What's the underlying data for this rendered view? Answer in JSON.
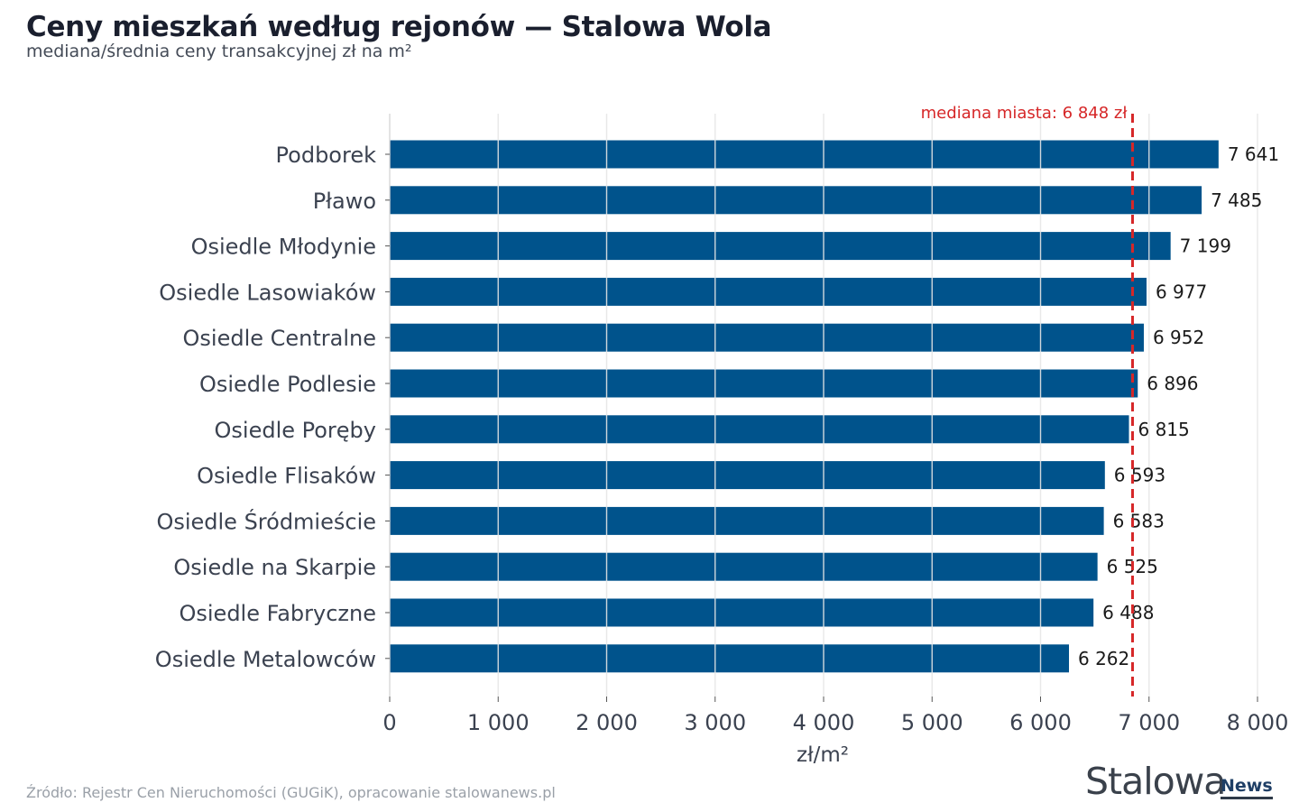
{
  "header": {
    "title": "Ceny mieszkań według rejonów — Stalowa Wola",
    "subtitle": "mediana/średnia ceny transakcyjnej zł na m²"
  },
  "footer": {
    "source": "Źródło: Rejestr Cen Nieruchomości (GUGiK), opracowanie stalowanews.pl",
    "logo_text": "StalowaNews"
  },
  "colors": {
    "bar": "#00538C",
    "median_line": "#D62728",
    "grid": "#e6e6e6",
    "axis_text": "#3b4250"
  },
  "chart_data": {
    "type": "bar",
    "orientation": "horizontal",
    "categories": [
      "Podborek",
      "Pławo",
      "Osiedle Młodynie",
      "Osiedle Lasowiaków",
      "Osiedle Centralne",
      "Osiedle Podlesie",
      "Osiedle Poręby",
      "Osiedle Flisaków",
      "Osiedle Śródmieście",
      "Osiedle na Skarpie",
      "Osiedle Fabryczne",
      "Osiedle Metalowców"
    ],
    "values": [
      7641,
      7485,
      7199,
      6977,
      6952,
      6896,
      6815,
      6593,
      6583,
      6525,
      6488,
      6262
    ],
    "value_labels": [
      "7 641",
      "7 485",
      "7 199",
      "6 977",
      "6 952",
      "6 896",
      "6 815",
      "6 593",
      "6 583",
      "6 525",
      "6 488",
      "6 262"
    ],
    "xlabel": "zł/m²",
    "ylabel": "",
    "xlim": [
      0,
      8000
    ],
    "xticks": [
      0,
      1000,
      2000,
      3000,
      4000,
      5000,
      6000,
      7000,
      8000
    ],
    "xtick_labels": [
      "0",
      "1 000",
      "2 000",
      "3 000",
      "4 000",
      "5 000",
      "6 000",
      "7 000",
      "8 000"
    ],
    "grid": true,
    "reference_line": {
      "value": 6848,
      "label": "mediana miasta: 6 848 zł",
      "style": "dashed"
    }
  }
}
